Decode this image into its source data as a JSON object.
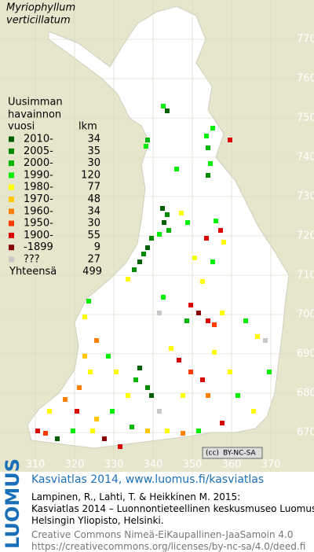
{
  "title": [
    "Myriophyllum",
    "verticillatum"
  ],
  "legend": {
    "header": [
      "Uusimman",
      "havainnon",
      "vuosi",
      "lkm"
    ],
    "rows": [
      {
        "label": "2010-",
        "count": 34,
        "color": "#006000"
      },
      {
        "label": "2005-",
        "count": 35,
        "color": "#008a00"
      },
      {
        "label": "2000-",
        "count": 30,
        "color": "#00b800"
      },
      {
        "label": "1990-",
        "count": 120,
        "color": "#00ee00"
      },
      {
        "label": "1980-",
        "count": 77,
        "color": "#ffff00"
      },
      {
        "label": "1970-",
        "count": 48,
        "color": "#ffc800"
      },
      {
        "label": "1960-",
        "count": 34,
        "color": "#ff8000"
      },
      {
        "label": "1950-",
        "count": 30,
        "color": "#ff3c00"
      },
      {
        "label": "1900-",
        "count": 55,
        "color": "#dd0000"
      },
      {
        "label": "-1899",
        "count": 9,
        "color": "#8a0000"
      },
      {
        "label": "???",
        "count": 27,
        "color": "#c8c8c8"
      }
    ],
    "total_label": "Yhteensä",
    "total": 499
  },
  "grid": {
    "yticks": [
      770,
      760,
      750,
      740,
      730,
      720,
      710,
      700,
      690,
      680,
      670
    ],
    "xticks": [
      310,
      320,
      330,
      340,
      350,
      360,
      370
    ]
  },
  "license_badge": "BY-NC-SA",
  "footer": {
    "brand": "LUOMUS",
    "headline": "Kasviatlas 2014, www.luomus.fi/kasviatlas",
    "citation": [
      "Lampinen, R., Lahti, T. & Heikkinen M. 2015:",
      "Kasviatlas 2014 – Luonnontieteellinen keskusmuseo Luomus,",
      "Helsingin Yliopisto, Helsinki."
    ],
    "license": [
      "Creative Commons Nimeä-EiKaupallinen-JaaSamoin 4.0",
      "https://creativecommons.org/licenses/by-nc-sa/4.0/deed.fi"
    ]
  }
}
